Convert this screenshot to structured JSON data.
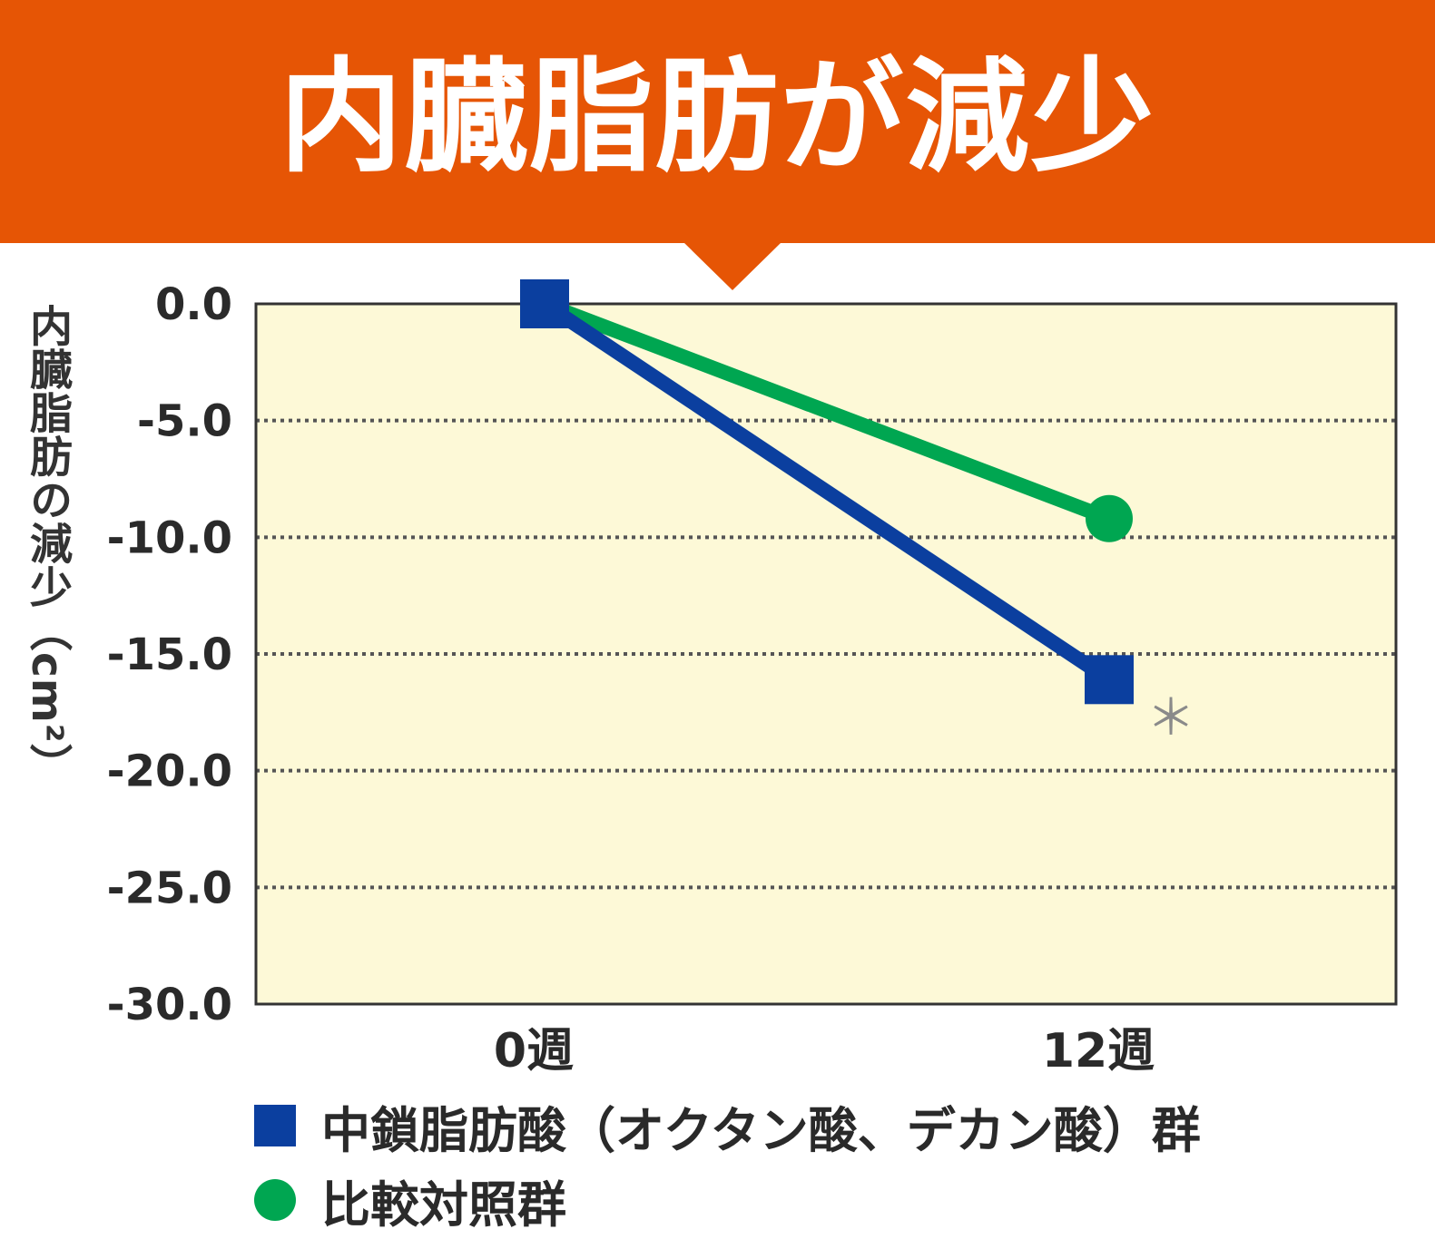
{
  "banner": {
    "title": "内臓脂肪が減少"
  },
  "chart_data": {
    "type": "line",
    "title": "内臓脂肪が減少",
    "ylabel": "内臓脂肪の減少（cm²）",
    "xlabel": "",
    "categories": [
      "0週",
      "12週"
    ],
    "ylim": [
      -30,
      0
    ],
    "y_ticks": [
      "0.0",
      "-5.0",
      "-10.0",
      "-15.0",
      "-20.0",
      "-25.0",
      "-30.0"
    ],
    "y_tick_values": [
      0,
      -5,
      -10,
      -15,
      -20,
      -25,
      -30
    ],
    "grid": "dotted-horizontal",
    "legend_position": "bottom-left",
    "background_color": "#fdf9d7",
    "series": [
      {
        "name": "中鎖脂肪酸（オクタン酸、デカン酸）群",
        "values": [
          0,
          -16.1
        ],
        "color": "#0b3f9f",
        "marker": "square"
      },
      {
        "name": "比較対照群",
        "values": [
          0,
          -9.2
        ],
        "color": "#00a651",
        "marker": "circle"
      }
    ],
    "annotations": [
      {
        "text": "＊",
        "category": "12週"
      }
    ]
  }
}
